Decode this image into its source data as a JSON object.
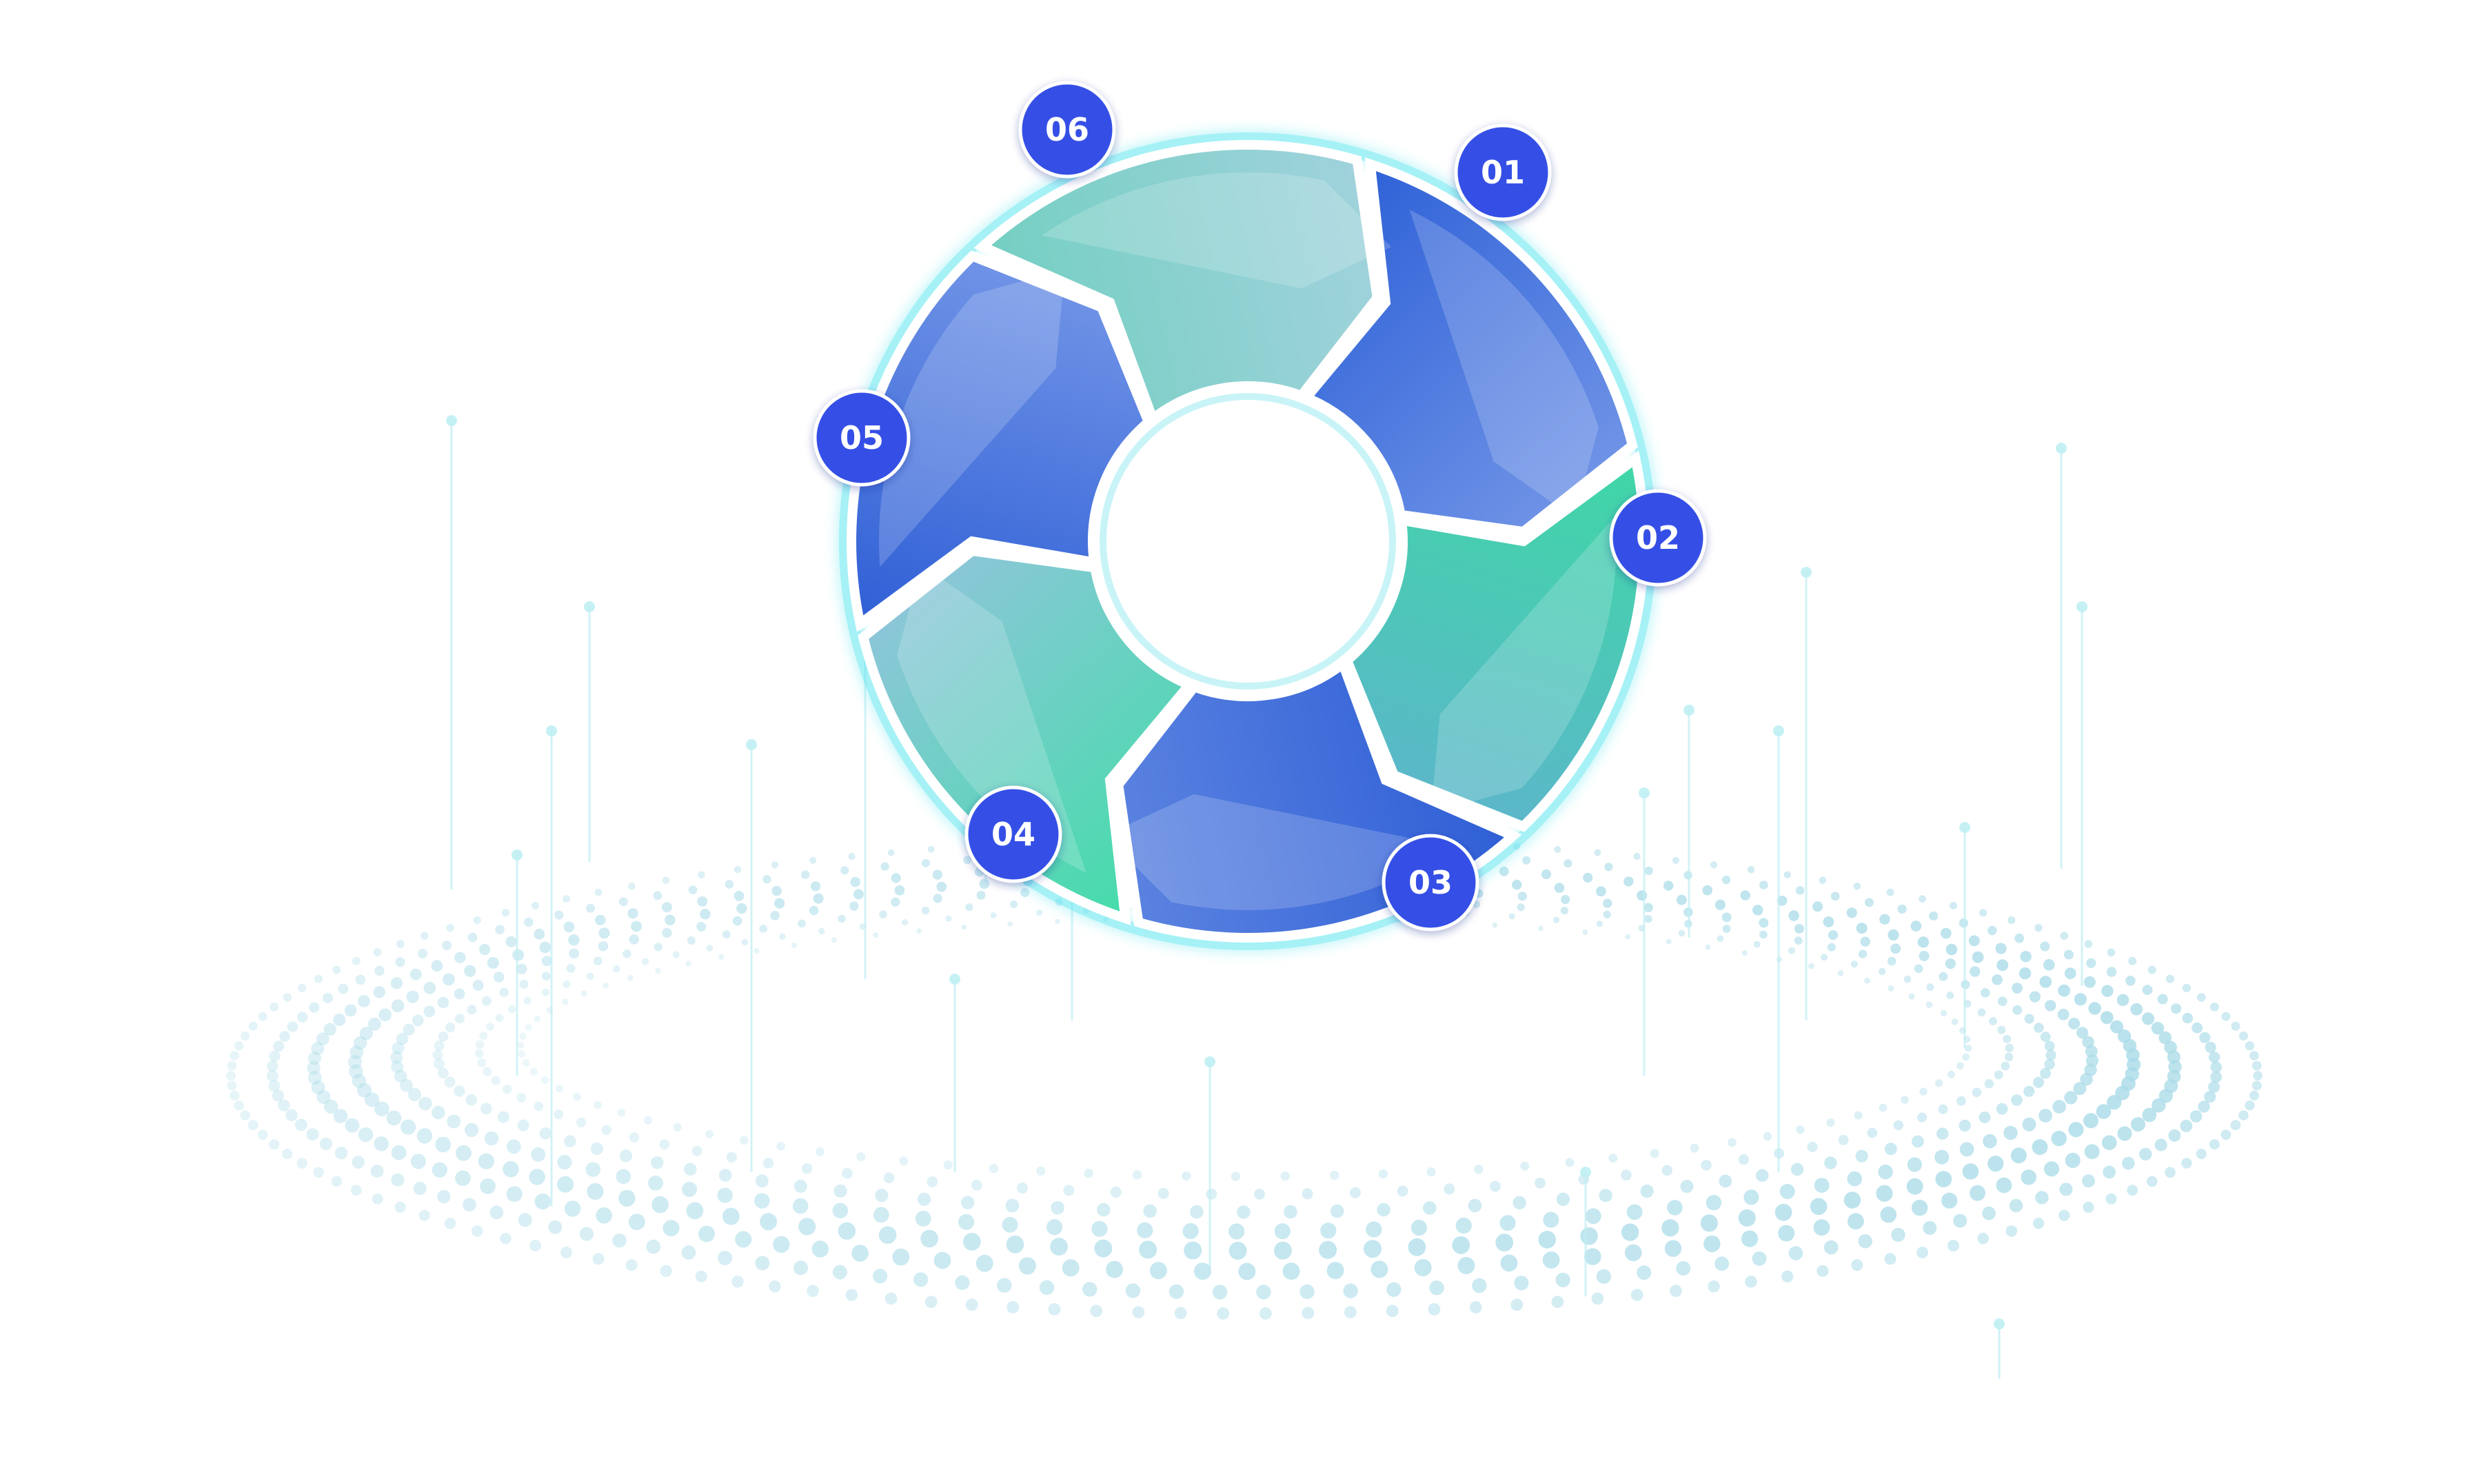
{
  "colors": {
    "background": "#ffffff",
    "blue_dark": "#2f5fd6",
    "blue_light": "#6f93e6",
    "teal_light": "#8fd0d8",
    "teal_mid": "#6ccfc0",
    "green": "#3fd7a6",
    "ring_glow": "#5de6f0",
    "badge_fill": "#3550e6",
    "badge_text": "#ffffff",
    "dots": "#a9dbe8"
  },
  "steps": [
    {
      "number": "01",
      "color_a": "#2f62d8",
      "color_b": "#6f93e6"
    },
    {
      "number": "02",
      "color_a": "#3fd7a6",
      "color_b": "#5bb7c9"
    },
    {
      "number": "03",
      "color_a": "#2f5fd6",
      "color_b": "#5a82e0"
    },
    {
      "number": "04",
      "color_a": "#45dcaa",
      "color_b": "#8cc6d8"
    },
    {
      "number": "05",
      "color_a": "#2f5fd6",
      "color_b": "#6f93e6"
    },
    {
      "number": "06",
      "color_a": "#74cfc2",
      "color_b": "#a0d2dc"
    }
  ]
}
